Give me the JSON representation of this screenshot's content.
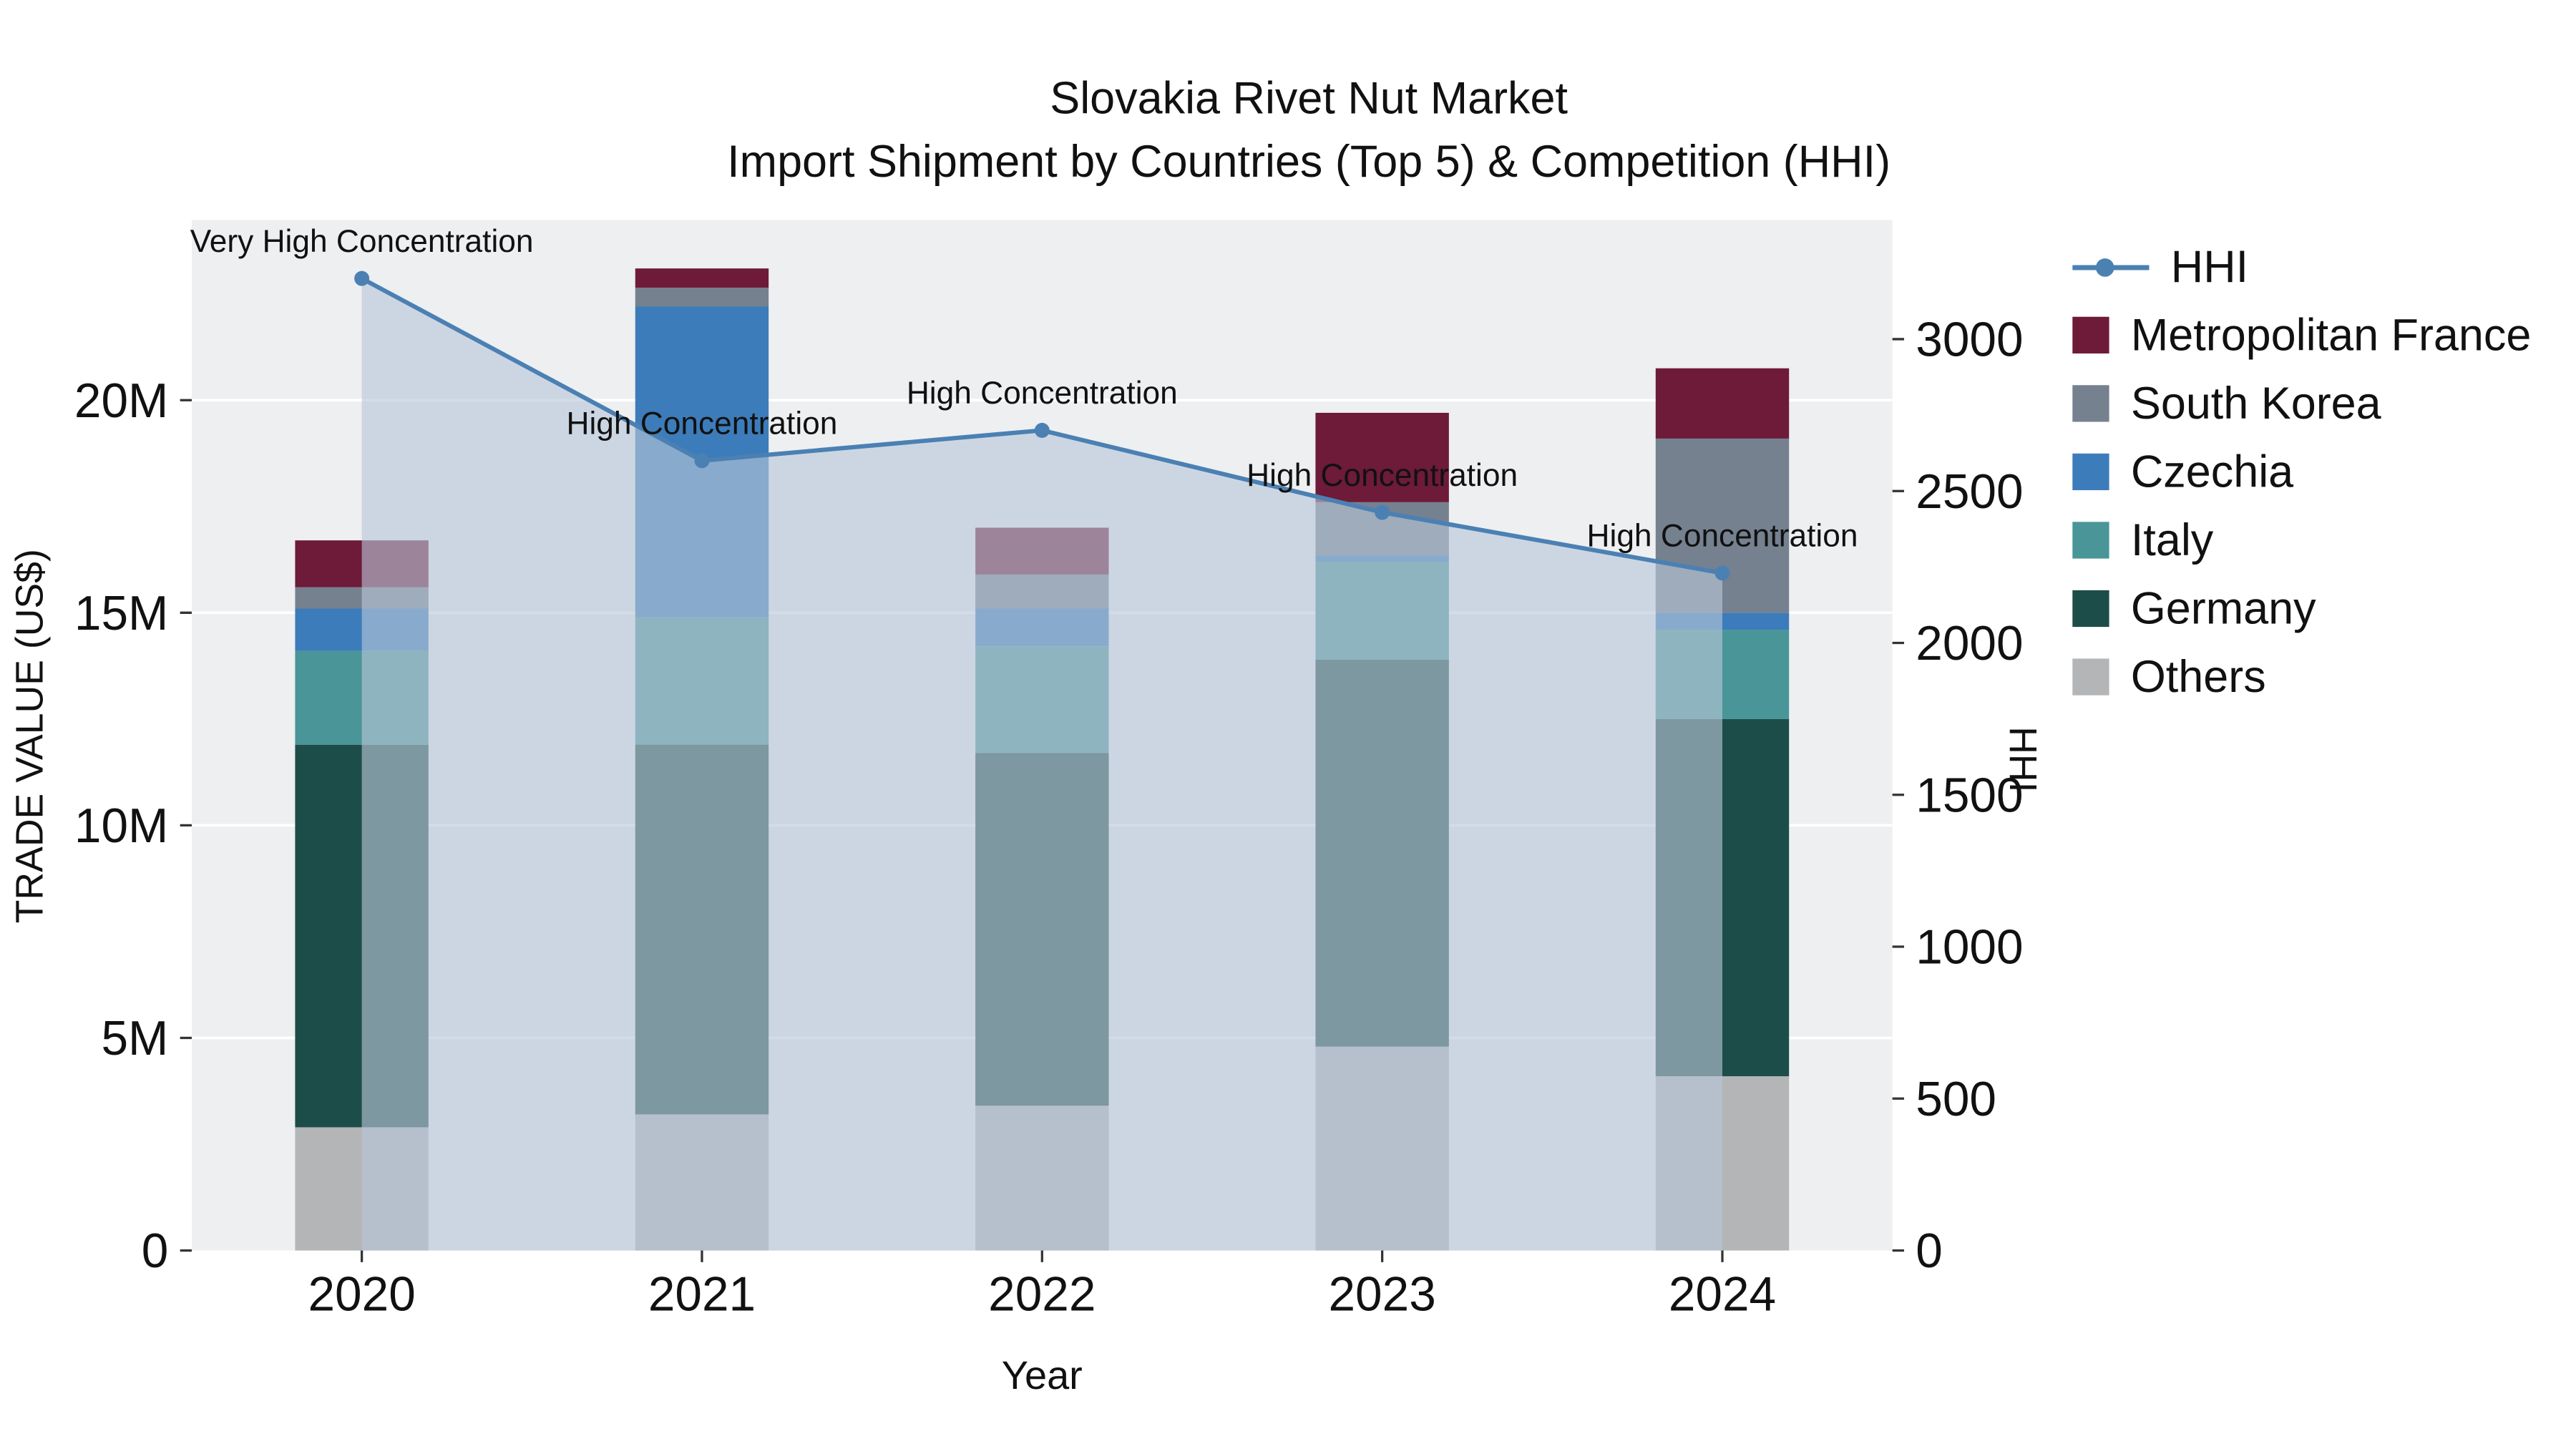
{
  "title": {
    "line1": "Slovakia Rivet Nut Market",
    "line2": "Import Shipment by Countries (Top 5) & Competition (HHI)"
  },
  "chart_data": {
    "type": "bar",
    "stacked": true,
    "title": "Slovakia Rivet Nut Market Import Shipment by Countries (Top 5) & Competition (HHI)",
    "xlabel": "Year",
    "ylabel_left": "TRADE VALUE (US$)",
    "ylabel_right": "HHI",
    "categories": [
      "2020",
      "2021",
      "2022",
      "2023",
      "2024"
    ],
    "y_left_ticks": [
      "0",
      "5M",
      "10M",
      "15M",
      "20M"
    ],
    "y_left_tick_values": [
      0,
      5000000,
      10000000,
      15000000,
      20000000
    ],
    "y_left_max": 24200000,
    "y_right_ticks": [
      0,
      500,
      1000,
      1500,
      2000,
      2500,
      3000
    ],
    "y_right_max": 3390,
    "grid": true,
    "legend_position": "right",
    "series": [
      {
        "name": "Others",
        "color": "#b3b5b7",
        "values": [
          2900000,
          3200000,
          3400000,
          4800000,
          4100000
        ]
      },
      {
        "name": "Germany",
        "color": "#1d4d48",
        "values": [
          9000000,
          8700000,
          8300000,
          9100000,
          8400000
        ]
      },
      {
        "name": "Italy",
        "color": "#4a9598",
        "values": [
          2200000,
          3000000,
          2500000,
          2300000,
          2100000
        ]
      },
      {
        "name": "Czechia",
        "color": "#3c7cba",
        "values": [
          1000000,
          7300000,
          900000,
          150000,
          400000
        ]
      },
      {
        "name": "South Korea",
        "color": "#75818f",
        "values": [
          500000,
          450000,
          800000,
          1250000,
          4100000
        ]
      },
      {
        "name": "Metropolitan France",
        "color": "#6e1a39",
        "values": [
          1100000,
          450000,
          1100000,
          2100000,
          1650000
        ]
      }
    ],
    "hhi": {
      "name": "HHI",
      "color": "#4b80b3",
      "area_color": "rgba(184,199,216,0.62)",
      "values": [
        3200,
        2600,
        2700,
        2430,
        2230
      ]
    },
    "annotations": [
      "Very High Concentration",
      "High Concentration",
      "High Concentration",
      "High Concentration",
      "High Concentration"
    ]
  },
  "legend": {
    "items": [
      {
        "label": "HHI",
        "type": "line",
        "color": "#4b80b3"
      },
      {
        "label": "Metropolitan France",
        "type": "swatch",
        "color": "#6e1a39"
      },
      {
        "label": "South Korea",
        "type": "swatch",
        "color": "#75818f"
      },
      {
        "label": "Czechia",
        "type": "swatch",
        "color": "#3c7cba"
      },
      {
        "label": "Italy",
        "type": "swatch",
        "color": "#4a9598"
      },
      {
        "label": "Germany",
        "type": "swatch",
        "color": "#1d4d48"
      },
      {
        "label": "Others",
        "type": "swatch",
        "color": "#b3b5b7"
      }
    ]
  },
  "colors": {
    "plot_bg": "#edeff1",
    "grid": "#ffffff",
    "text": "#111111",
    "tick": "#333333"
  }
}
